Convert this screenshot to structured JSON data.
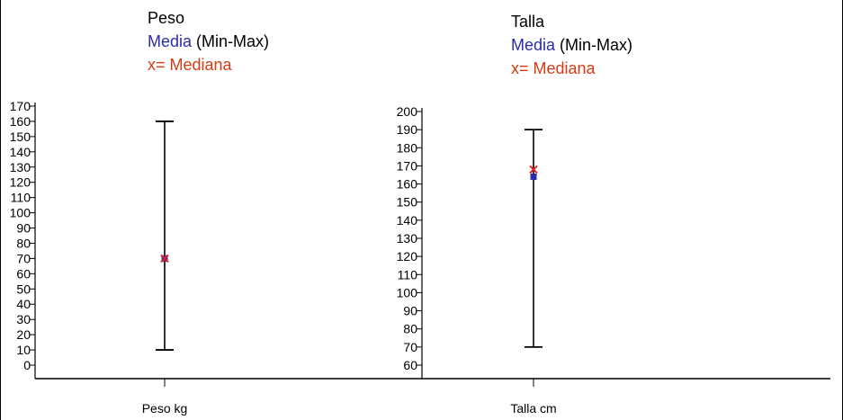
{
  "legend_labels": {
    "mean": "Media",
    "range": "(Min-Max)",
    "median": "x= Mediana"
  },
  "colors": {
    "mean": "#2b2ba8",
    "median": "#e0201a",
    "axis": "#000000"
  },
  "chart_data": [
    {
      "type": "errorbar",
      "title": "Peso",
      "category": "Peso  kg",
      "mean": 70,
      "median": 70,
      "min": 10,
      "max": 160,
      "ylim": [
        0,
        170
      ],
      "yticks": [
        0,
        10,
        20,
        30,
        40,
        50,
        60,
        70,
        80,
        90,
        100,
        110,
        120,
        130,
        140,
        150,
        160,
        170
      ]
    },
    {
      "type": "errorbar",
      "title": "Talla",
      "category": "Talla  cm",
      "mean": 164,
      "median": 168,
      "min": 70,
      "max": 190,
      "ylim": [
        60,
        200
      ],
      "yticks": [
        60,
        70,
        80,
        90,
        100,
        110,
        120,
        130,
        140,
        150,
        160,
        170,
        180,
        190,
        200
      ]
    }
  ]
}
